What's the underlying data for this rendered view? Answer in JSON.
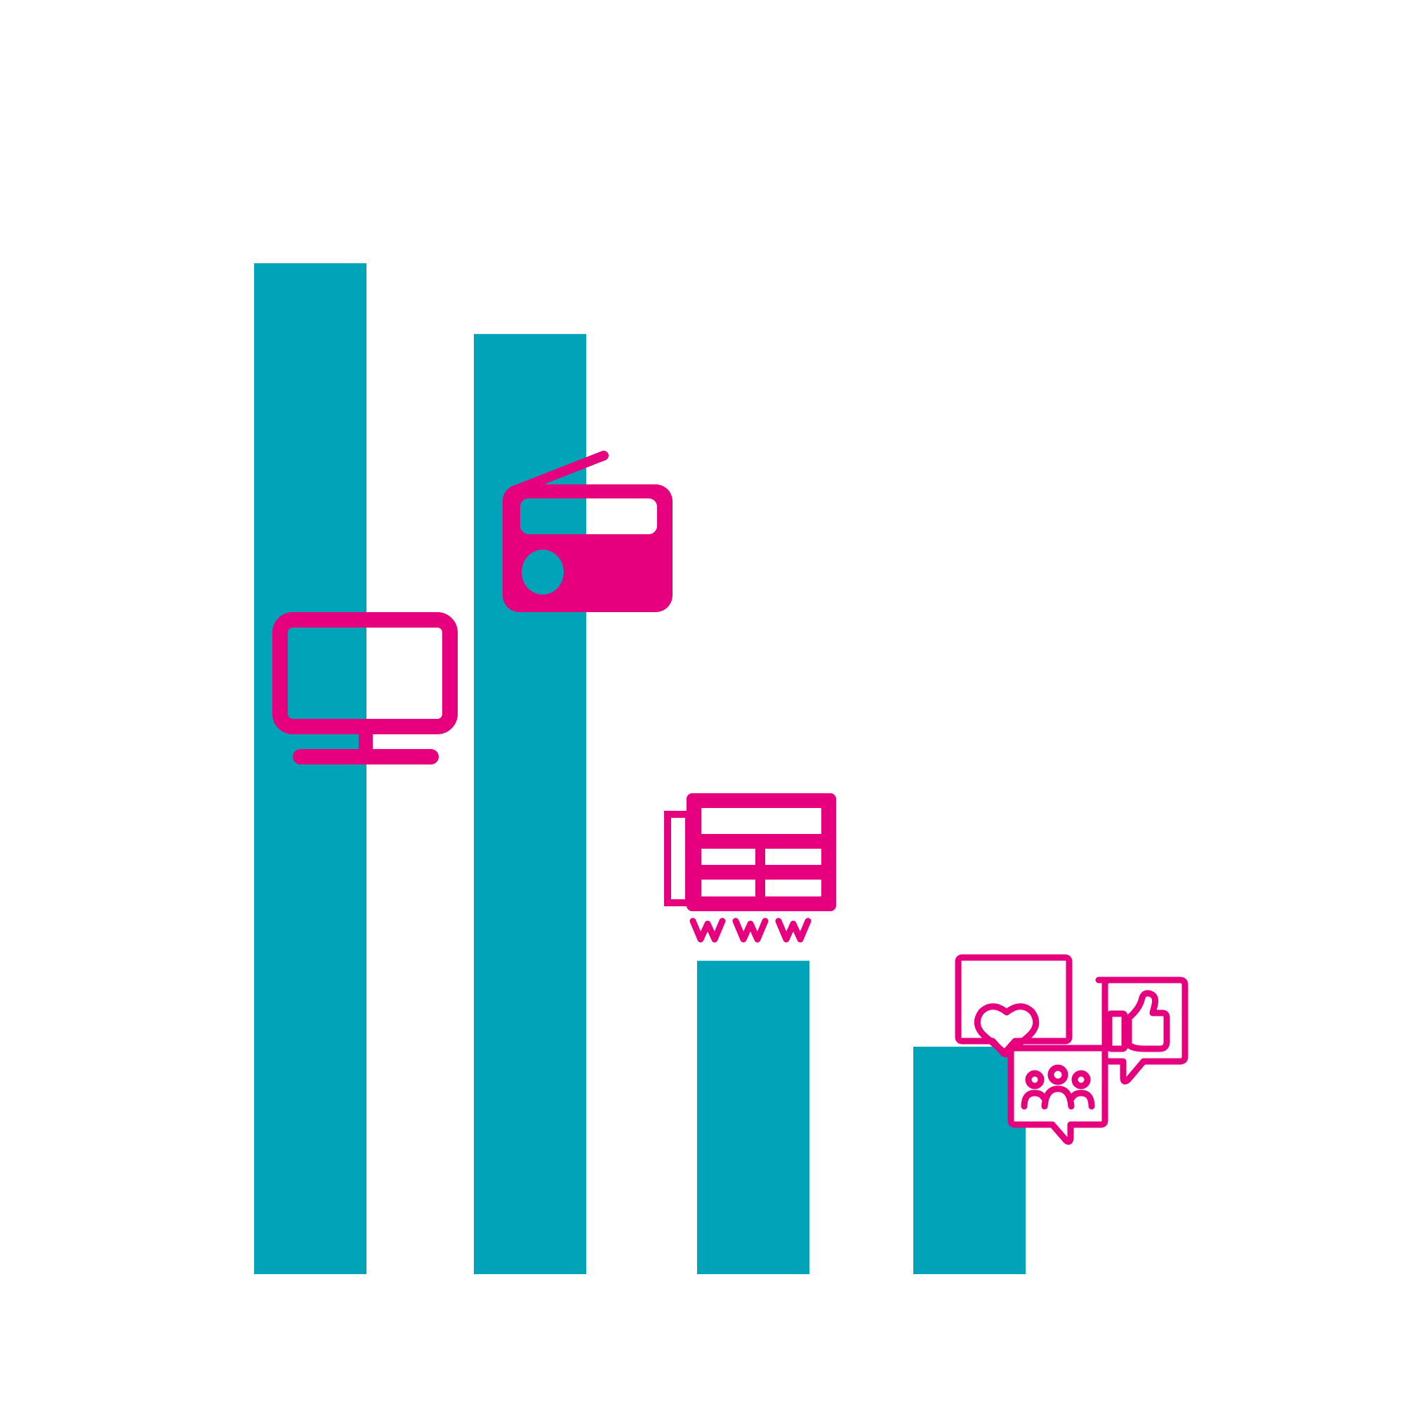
{
  "colors": {
    "bar": "#00a3b8",
    "icon": "#e6007e",
    "background": "#ffffff"
  },
  "chart_data": {
    "type": "bar",
    "title": "",
    "xlabel": "",
    "ylabel": "",
    "ylim": [
      0,
      100
    ],
    "grid": false,
    "legend": "none",
    "categories": [
      {
        "icon": "television-icon",
        "value": 100
      },
      {
        "icon": "radio-icon",
        "value": 93
      },
      {
        "icon": "website-icon",
        "value": 31
      },
      {
        "icon": "social-media-icon",
        "value": 22.5
      }
    ]
  }
}
